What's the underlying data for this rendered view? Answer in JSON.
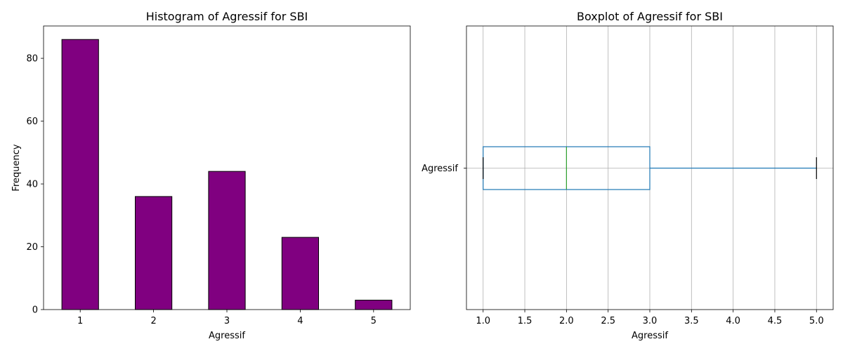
{
  "chart_data": [
    {
      "type": "bar",
      "title": "Histogram of Agressif for SBI",
      "xlabel": "Agressif",
      "ylabel": "Frequency",
      "categories": [
        "1",
        "2",
        "3",
        "4",
        "5"
      ],
      "values": [
        86,
        36,
        44,
        23,
        3
      ],
      "ylim": [
        0,
        90.3
      ],
      "yticks": [
        0,
        20,
        40,
        60,
        80
      ],
      "bar_color": "#800080",
      "edge_color": "#000000",
      "grid": false
    },
    {
      "type": "boxplot",
      "title": "Boxplot of Agressif for SBI",
      "xlabel": "Agressif",
      "categories": [
        "Agressif"
      ],
      "box": {
        "min": 1.0,
        "q1": 1.0,
        "median": 2.0,
        "q3": 3.0,
        "max": 5.0
      },
      "xlim": [
        0.8,
        5.2
      ],
      "xticks": [
        "1.0",
        "1.5",
        "2.0",
        "2.5",
        "3.0",
        "3.5",
        "4.0",
        "4.5",
        "5.0"
      ],
      "box_color": "#1f77b4",
      "median_color": "#2ca02c",
      "cap_color": "#000000",
      "grid": true
    }
  ]
}
